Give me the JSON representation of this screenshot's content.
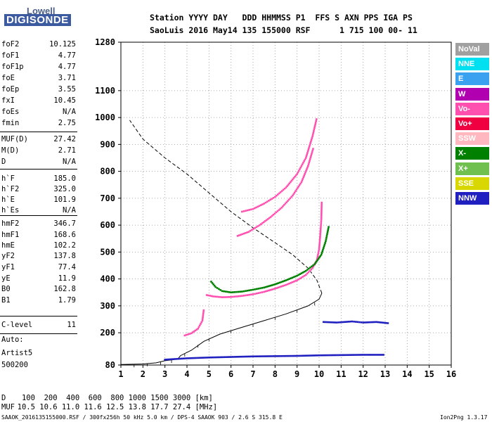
{
  "logo": {
    "top": "Lowell",
    "bottom": "DIGISONDE"
  },
  "header": {
    "line1": "Station YYYY DAY   DDD HHMMSS P1  FFS S AXN PPS IGA PS",
    "line2": "SaoLuis 2016 May14 135 155000 RSF      1 715 100 00- 11"
  },
  "params": [
    {
      "name": "foF2",
      "value": "10.125"
    },
    {
      "name": "foF1",
      "value": "4.77"
    },
    {
      "name": "foF1p",
      "value": "4.77"
    },
    {
      "name": "foE",
      "value": "3.71"
    },
    {
      "name": "foEp",
      "value": "3.55"
    },
    {
      "name": "fxI",
      "value": "10.45"
    },
    {
      "name": "foEs",
      "value": "N/A"
    },
    {
      "name": "fmin",
      "value": "2.75"
    },
    {
      "name": "MUF(D)",
      "value": "27.42"
    },
    {
      "name": "M(D)",
      "value": "2.71"
    },
    {
      "name": "D",
      "value": "N/A"
    },
    {
      "name": "h`F",
      "value": "185.0"
    },
    {
      "name": "h`F2",
      "value": "325.0"
    },
    {
      "name": "h`E",
      "value": "101.9"
    },
    {
      "name": "h`Es",
      "value": "N/A"
    },
    {
      "name": "hmF2",
      "value": "346.7"
    },
    {
      "name": "hmF1",
      "value": "168.6"
    },
    {
      "name": "hmE",
      "value": "102.2"
    },
    {
      "name": "yF2",
      "value": "137.8"
    },
    {
      "name": "yF1",
      "value": "77.4"
    },
    {
      "name": "yE",
      "value": "11.9"
    },
    {
      "name": "B0",
      "value": "162.8"
    },
    {
      "name": "B1",
      "value": "1.79"
    },
    {
      "name": "C-level",
      "value": "11"
    }
  ],
  "autoscale": {
    "line1": "Auto:",
    "line2": "Artist5",
    "line3": "500200"
  },
  "legend": [
    {
      "label": "NoVal",
      "bg": "#a0a0a0",
      "fg": "#ffffff"
    },
    {
      "label": "NNE",
      "bg": "#00e0f0",
      "fg": "#ffffff"
    },
    {
      "label": "E",
      "bg": "#3aa0f0",
      "fg": "#ffffff"
    },
    {
      "label": "W",
      "bg": "#b000b0",
      "fg": "#ffffff"
    },
    {
      "label": "Vo-",
      "bg": "#ff50b0",
      "fg": "#ffffff"
    },
    {
      "label": "Vo+",
      "bg": "#f00040",
      "fg": "#ffffff"
    },
    {
      "label": "SSW",
      "bg": "#ffb8c0",
      "fg": "#ffffff"
    },
    {
      "label": "X-",
      "bg": "#008000",
      "fg": "#ffffff"
    },
    {
      "label": "X+",
      "bg": "#70c050",
      "fg": "#ffffff"
    },
    {
      "label": "SSE",
      "bg": "#d8d800",
      "fg": "#ffffff"
    },
    {
      "label": "NNW",
      "bg": "#2020c0",
      "fg": "#ffffff"
    }
  ],
  "muf_table": {
    "d_label": "D",
    "d_values": "   100  200  400  600  800 1000 1500 3000 [km]",
    "muf_label": "MUF",
    "muf_values": "  10.5 10.6 11.0 11.6 12.5 13.8 17.7 27.4 [MHz]"
  },
  "footer": {
    "left": "SAAOK_2016135155000.RSF / 300fx256h 50 kHz 5.0 km / DPS-4 SAAOK 903 / 2.6 S 315.8 E",
    "right": "Ion2Png 1.3.17"
  },
  "chart_data": {
    "type": "scatter",
    "xlim": [
      1,
      16
    ],
    "ylim": [
      80,
      1280
    ],
    "x_ticks": [
      1,
      2,
      3,
      4,
      5,
      6,
      7,
      8,
      9,
      10,
      11,
      12,
      13,
      14,
      15,
      16
    ],
    "y_ticks": [
      80,
      200,
      300,
      400,
      500,
      600,
      700,
      800,
      900,
      1000,
      1100,
      1280
    ],
    "grid": true,
    "series": [
      {
        "name": "O-trace F layer",
        "color": "#ff50b0",
        "points": [
          [
            4.9,
            340
          ],
          [
            5.2,
            335
          ],
          [
            5.6,
            332
          ],
          [
            6.0,
            333
          ],
          [
            6.5,
            337
          ],
          [
            7.0,
            343
          ],
          [
            7.5,
            352
          ],
          [
            8.0,
            364
          ],
          [
            8.5,
            378
          ],
          [
            9.0,
            395
          ],
          [
            9.4,
            415
          ],
          [
            9.7,
            440
          ],
          [
            9.9,
            470
          ],
          [
            10.0,
            510
          ],
          [
            10.05,
            560
          ],
          [
            10.1,
            620
          ],
          [
            10.12,
            690
          ]
        ]
      },
      {
        "name": "F1 cusp",
        "color": "#ff50b0",
        "points": [
          [
            3.9,
            190
          ],
          [
            4.2,
            198
          ],
          [
            4.5,
            215
          ],
          [
            4.7,
            245
          ],
          [
            4.77,
            290
          ]
        ]
      },
      {
        "name": "X-trace F layer",
        "color": "#008000",
        "points": [
          [
            5.1,
            390
          ],
          [
            5.3,
            370
          ],
          [
            5.6,
            355
          ],
          [
            6.0,
            350
          ],
          [
            6.5,
            353
          ],
          [
            7.0,
            360
          ],
          [
            7.5,
            368
          ],
          [
            8.0,
            380
          ],
          [
            8.5,
            395
          ],
          [
            9.0,
            412
          ],
          [
            9.4,
            430
          ],
          [
            9.8,
            455
          ],
          [
            10.1,
            490
          ],
          [
            10.3,
            540
          ],
          [
            10.45,
            600
          ]
        ]
      },
      {
        "name": "Multiple echo O",
        "color": "#ff50b0",
        "points": [
          [
            6.5,
            650
          ],
          [
            7.0,
            660
          ],
          [
            7.5,
            680
          ],
          [
            8.0,
            705
          ],
          [
            8.5,
            740
          ],
          [
            9.0,
            790
          ],
          [
            9.4,
            850
          ],
          [
            9.7,
            930
          ],
          [
            9.9,
            1000
          ]
        ]
      },
      {
        "name": "Multiple echo O (2)",
        "color": "#ff50b0",
        "points": [
          [
            6.3,
            560
          ],
          [
            6.8,
            575
          ],
          [
            7.3,
            600
          ],
          [
            7.8,
            630
          ],
          [
            8.3,
            665
          ],
          [
            8.8,
            710
          ],
          [
            9.2,
            760
          ],
          [
            9.5,
            820
          ],
          [
            9.75,
            890
          ]
        ]
      },
      {
        "name": "E layer echoes",
        "color": "#2020c0",
        "points": [
          [
            3.0,
            100
          ],
          [
            4.0,
            105
          ],
          [
            5.0,
            108
          ],
          [
            6.0,
            110
          ],
          [
            7.0,
            112
          ],
          [
            8.0,
            113
          ],
          [
            9.0,
            114
          ],
          [
            10.0,
            116
          ],
          [
            11.0,
            117
          ],
          [
            12.0,
            118
          ],
          [
            13.0,
            118
          ]
        ]
      },
      {
        "name": "Sporadic echoes",
        "color": "#2020c0",
        "points": [
          [
            10.2,
            240
          ],
          [
            10.8,
            238
          ],
          [
            11.5,
            242
          ],
          [
            12.0,
            238
          ],
          [
            12.6,
            240
          ],
          [
            13.2,
            235
          ]
        ]
      }
    ],
    "lines": [
      {
        "name": "Electron density profile",
        "style": "solid",
        "points": [
          [
            1.0,
            82
          ],
          [
            2.0,
            84
          ],
          [
            2.6,
            88
          ],
          [
            3.0,
            96
          ],
          [
            3.4,
            100
          ],
          [
            3.6,
            104
          ],
          [
            3.71,
            115
          ],
          [
            4.2,
            135
          ],
          [
            4.77,
            168
          ],
          [
            5.5,
            195
          ],
          [
            6.5,
            220
          ],
          [
            7.5,
            245
          ],
          [
            8.5,
            270
          ],
          [
            9.5,
            300
          ],
          [
            10.0,
            325
          ],
          [
            10.125,
            347
          ]
        ]
      },
      {
        "name": "Topside profile",
        "style": "dashed",
        "points": [
          [
            10.125,
            347
          ],
          [
            9.9,
            395
          ],
          [
            9.5,
            440
          ],
          [
            8.8,
            490
          ],
          [
            8.0,
            535
          ],
          [
            7.0,
            590
          ],
          [
            6.0,
            650
          ],
          [
            5.0,
            720
          ],
          [
            4.0,
            790
          ],
          [
            3.0,
            850
          ],
          [
            2.0,
            920
          ],
          [
            1.4,
            990
          ]
        ]
      }
    ],
    "profile_ticks": [
      [
        1.6,
        82
      ],
      [
        2.2,
        86
      ],
      [
        2.8,
        92
      ],
      [
        3.3,
        98
      ],
      [
        3.9,
        122
      ],
      [
        4.5,
        155
      ],
      [
        5.0,
        178
      ],
      [
        6.0,
        208
      ],
      [
        7.0,
        232
      ],
      [
        8.0,
        258
      ],
      [
        9.0,
        285
      ],
      [
        9.8,
        312
      ]
    ]
  }
}
